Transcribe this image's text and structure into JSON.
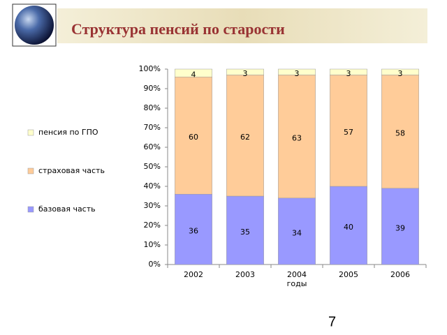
{
  "chart_data": {
    "type": "stacked_bar",
    "title": "Структура пенсий по старости",
    "categories": [
      "2002",
      "2003",
      "2004",
      "2005",
      "2006"
    ],
    "x_label": "годы",
    "series": [
      {
        "name": "базовая часть",
        "color": "#9999ff",
        "values": [
          36,
          35,
          34,
          40,
          39
        ]
      },
      {
        "name": "страховая часть",
        "color": "#ffcc99",
        "values": [
          60,
          62,
          63,
          57,
          58
        ]
      },
      {
        "name": "пенсия по ГПО",
        "color": "#ffffcc",
        "values": [
          4,
          3,
          3,
          3,
          3
        ]
      }
    ],
    "ylim": [
      0,
      100
    ],
    "yticks": [
      {
        "value": 0,
        "label": "0%"
      },
      {
        "value": 10,
        "label": "10%"
      },
      {
        "value": 20,
        "label": "20%"
      },
      {
        "value": 30,
        "label": "30%"
      },
      {
        "value": 40,
        "label": "40%"
      },
      {
        "value": 50,
        "label": "50%"
      },
      {
        "value": 60,
        "label": "60%"
      },
      {
        "value": 70,
        "label": "70%"
      },
      {
        "value": 80,
        "label": "80%"
      },
      {
        "value": 90,
        "label": "90%"
      },
      {
        "value": 100,
        "label": "100%"
      }
    ],
    "legend": "left"
  },
  "page_number": "7"
}
